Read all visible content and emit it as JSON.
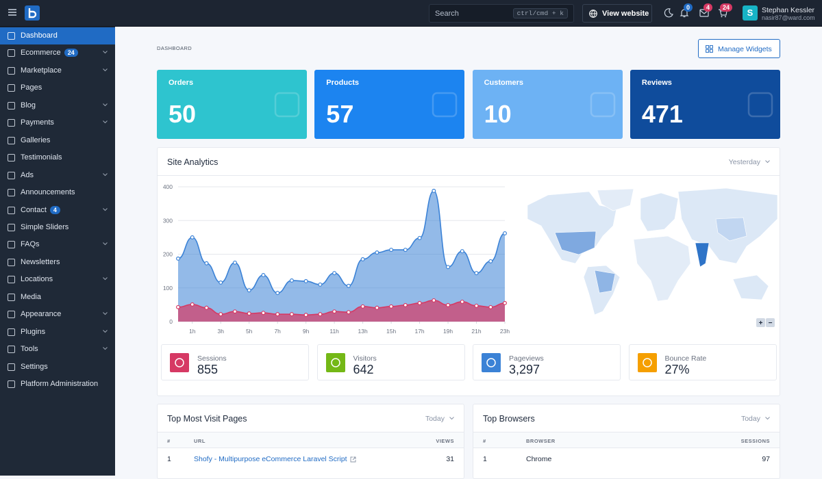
{
  "topbar": {
    "search_placeholder": "Search",
    "search_shortcut": "ctrl/cmd + k",
    "view_website": "View website",
    "notifications_badge": 0,
    "messages_badge": 4,
    "cart_badge": 24,
    "user": {
      "avatar": "S",
      "name": "Stephan Kessler",
      "email": "nasir87@ward.com"
    }
  },
  "sidebar": {
    "items": [
      {
        "label": "Dashboard",
        "active": true
      },
      {
        "label": "Ecommerce",
        "badge": 24,
        "expandable": true
      },
      {
        "label": "Marketplace",
        "expandable": true
      },
      {
        "label": "Pages"
      },
      {
        "label": "Blog",
        "expandable": true
      },
      {
        "label": "Payments",
        "expandable": true
      },
      {
        "label": "Galleries"
      },
      {
        "label": "Testimonials"
      },
      {
        "label": "Ads",
        "expandable": true
      },
      {
        "label": "Announcements"
      },
      {
        "label": "Contact",
        "badge": 4,
        "expandable": true
      },
      {
        "label": "Simple Sliders"
      },
      {
        "label": "FAQs",
        "expandable": true
      },
      {
        "label": "Newsletters"
      },
      {
        "label": "Locations",
        "expandable": true
      },
      {
        "label": "Media"
      },
      {
        "label": "Appearance",
        "expandable": true
      },
      {
        "label": "Plugins",
        "expandable": true
      },
      {
        "label": "Tools",
        "expandable": true
      },
      {
        "label": "Settings"
      },
      {
        "label": "Platform Administration"
      }
    ]
  },
  "header": {
    "breadcrumb": "DASHBOARD",
    "manage_widgets": "Manage Widgets"
  },
  "cards": [
    {
      "title": "Orders",
      "value": 50,
      "color": "#2ec4cf"
    },
    {
      "title": "Products",
      "value": 57,
      "color": "#1c84f0"
    },
    {
      "title": "Customers",
      "value": 10,
      "color": "#6db2f4"
    },
    {
      "title": "Reviews",
      "value": 471,
      "color": "#0f4c9c"
    }
  ],
  "analytics": {
    "title": "Site Analytics",
    "filter": "Yesterday",
    "chart_data": {
      "type": "area",
      "x": [
        0,
        1,
        2,
        3,
        4,
        5,
        6,
        7,
        8,
        9,
        10,
        11,
        12,
        13,
        14,
        15,
        16,
        17,
        18,
        19,
        20,
        21,
        22,
        23
      ],
      "xlim": [
        0,
        23
      ],
      "xticks": [
        {
          "value": 1,
          "label": "1h"
        },
        {
          "value": 3,
          "label": "3h"
        },
        {
          "value": 5,
          "label": "5h"
        },
        {
          "value": 7,
          "label": "7h"
        },
        {
          "value": 9,
          "label": "9h"
        },
        {
          "value": 11,
          "label": "11h"
        },
        {
          "value": 13,
          "label": "13h"
        },
        {
          "value": 15,
          "label": "15h"
        },
        {
          "value": 17,
          "label": "17h"
        },
        {
          "value": 19,
          "label": "19h"
        },
        {
          "value": 21,
          "label": "21h"
        },
        {
          "value": 23,
          "label": "23h"
        }
      ],
      "ylim": [
        0,
        400
      ],
      "yticks": [
        0,
        100,
        200,
        300,
        400
      ],
      "grid": true,
      "series": [
        {
          "color": "#3b82d6",
          "values": [
            187,
            250,
            173,
            116,
            175,
            93,
            138,
            85,
            122,
            120,
            110,
            144,
            106,
            185,
            205,
            213,
            213,
            248,
            388,
            162,
            209,
            144,
            179,
            262
          ]
        },
        {
          "color": "#d63964",
          "values": [
            43,
            51,
            41,
            22,
            30,
            24,
            26,
            22,
            22,
            20,
            22,
            30,
            28,
            45,
            41,
            45,
            49,
            55,
            63,
            49,
            59,
            47,
            43,
            55
          ]
        }
      ]
    },
    "map_controls": [
      "+",
      "−"
    ],
    "stats": [
      {
        "label": "Sessions",
        "value": 855,
        "color": "#d63964"
      },
      {
        "label": "Visitors",
        "value": 642,
        "color": "#74b816"
      },
      {
        "label": "Pageviews",
        "value": {
          "value": 3297,
          "label": "3,297"
        },
        "color": "#3b82d6"
      },
      {
        "label": "Bounce Rate",
        "value": {
          "value": 27,
          "label": "27%"
        },
        "color": "#f59f00"
      }
    ]
  },
  "top_pages": {
    "title": "Top Most Visit Pages",
    "filter": "Today",
    "headers": [
      "#",
      "URL",
      "VIEWS"
    ],
    "rows": [
      [
        1,
        "Shofy - Multipurpose eCommerce Laravel Script",
        31
      ]
    ]
  },
  "top_browsers": {
    "title": "Top Browsers",
    "filter": "Today",
    "headers": [
      "#",
      "BROWSER",
      "SESSIONS"
    ],
    "rows": [
      [
        1,
        "Chrome",
        97
      ]
    ]
  }
}
